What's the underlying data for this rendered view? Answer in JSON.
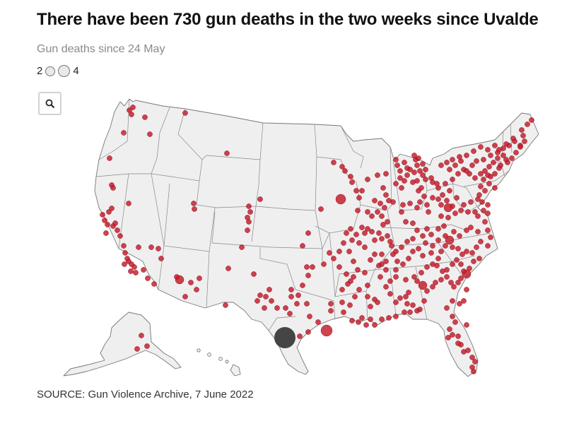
{
  "header": {
    "title": "There have been 730 gun deaths in the two weeks since Uvalde",
    "subtitle": "Gun deaths since 24 May"
  },
  "legend": {
    "size_min_label": "2",
    "size_max_label": "4"
  },
  "controls": {
    "zoom_icon": "search-icon"
  },
  "map": {
    "region": "United States",
    "land_color": "#efefef",
    "border_color": "#777777",
    "marker_color": "#c21b2a",
    "highlight_color": "#3b3b3b",
    "highlight_location": "Uvalde, Texas"
  },
  "footer": {
    "source": "SOURCE: Gun Violence Archive, 7 June 2022"
  }
}
